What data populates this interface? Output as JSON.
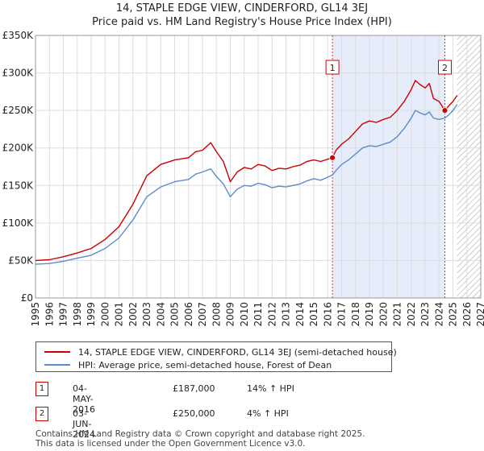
{
  "chart_data": {
    "type": "line",
    "title": "14, STAPLE EDGE VIEW, CINDERFORD, GL14 3EJ",
    "subtitle": "Price paid vs. HM Land Registry's House Price Index (HPI)",
    "xlabel": "",
    "ylabel": "",
    "xlim": [
      1995,
      2027
    ],
    "ylim": [
      0,
      350000
    ],
    "x_ticks": [
      "1995",
      "1996",
      "1997",
      "1998",
      "1999",
      "2000",
      "2001",
      "2002",
      "2003",
      "2004",
      "2005",
      "2006",
      "2007",
      "2008",
      "2009",
      "2010",
      "2011",
      "2012",
      "2013",
      "2014",
      "2015",
      "2016",
      "2017",
      "2018",
      "2019",
      "2020",
      "2021",
      "2022",
      "2023",
      "2024",
      "2025",
      "2026",
      "2027"
    ],
    "y_ticks": [
      {
        "value": 0,
        "label": "£0"
      },
      {
        "value": 50000,
        "label": "£50K"
      },
      {
        "value": 100000,
        "label": "£100K"
      },
      {
        "value": 150000,
        "label": "£150K"
      },
      {
        "value": 200000,
        "label": "£200K"
      },
      {
        "value": 250000,
        "label": "£250K"
      },
      {
        "value": 300000,
        "label": "£300K"
      },
      {
        "value": 350000,
        "label": "£350K"
      }
    ],
    "grid": true,
    "shaded_range": [
      2016.34,
      2024.42
    ],
    "future_hatch_from": 2025.3,
    "series": [
      {
        "name": "14, STAPLE EDGE VIEW, CINDERFORD, GL14 3EJ (semi-detached house)",
        "color": "#cc0000",
        "x": [
          1995,
          1996,
          1997,
          1998,
          1999,
          2000,
          2001,
          2002,
          2003,
          2004,
          2005,
          2006,
          2006.5,
          2007,
          2007.6,
          2008,
          2008.5,
          2009,
          2009.5,
          2010,
          2010.5,
          2011,
          2011.5,
          2012,
          2012.5,
          2013,
          2013.5,
          2014,
          2014.5,
          2015,
          2015.5,
          2016,
          2016.34,
          2016.6,
          2017,
          2017.5,
          2018,
          2018.5,
          2019,
          2019.5,
          2020,
          2020.5,
          2021,
          2021.5,
          2022,
          2022.3,
          2022.6,
          2023,
          2023.3,
          2023.6,
          2024,
          2024.42,
          2024.7,
          2025,
          2025.3
        ],
        "y": [
          50000,
          51000,
          55000,
          60000,
          66000,
          78000,
          95000,
          125000,
          163000,
          178000,
          184000,
          187000,
          195000,
          197000,
          207000,
          195000,
          182000,
          155000,
          168000,
          174000,
          172000,
          178000,
          176000,
          170000,
          173000,
          172000,
          175000,
          177000,
          182000,
          184000,
          182000,
          185000,
          187000,
          197000,
          205000,
          212000,
          222000,
          232000,
          236000,
          234000,
          238000,
          241000,
          250000,
          262000,
          278000,
          290000,
          285000,
          280000,
          286000,
          266000,
          262000,
          250000,
          256000,
          262000,
          270000
        ]
      },
      {
        "name": "HPI: Average price, semi-detached house, Forest of Dean",
        "color": "#5b8cc8",
        "x": [
          1995,
          1996,
          1997,
          1998,
          1999,
          2000,
          2001,
          2002,
          2003,
          2004,
          2005,
          2006,
          2006.5,
          2007,
          2007.6,
          2008,
          2008.5,
          2009,
          2009.5,
          2010,
          2010.5,
          2011,
          2011.5,
          2012,
          2012.5,
          2013,
          2013.5,
          2014,
          2014.5,
          2015,
          2015.5,
          2016,
          2016.34,
          2016.6,
          2017,
          2017.5,
          2018,
          2018.5,
          2019,
          2019.5,
          2020,
          2020.5,
          2021,
          2021.5,
          2022,
          2022.3,
          2022.6,
          2023,
          2023.3,
          2023.6,
          2024,
          2024.42,
          2024.7,
          2025,
          2025.3
        ],
        "y": [
          45000,
          46000,
          49000,
          53000,
          57000,
          66000,
          80000,
          104000,
          135000,
          148000,
          155000,
          158000,
          165000,
          168000,
          172000,
          162000,
          152000,
          135000,
          145000,
          150000,
          149000,
          153000,
          151000,
          147000,
          149000,
          148000,
          150000,
          152000,
          156000,
          159000,
          157000,
          161000,
          164000,
          170000,
          178000,
          184000,
          192000,
          200000,
          203000,
          202000,
          205000,
          208000,
          215000,
          226000,
          240000,
          250000,
          247000,
          244000,
          248000,
          240000,
          238000,
          240000,
          244000,
          250000,
          258000
        ]
      }
    ],
    "markers": [
      {
        "label": "1",
        "x": 2016.34,
        "y": 187000
      },
      {
        "label": "2",
        "x": 2024.42,
        "y": 250000
      }
    ]
  },
  "legend": {
    "items": [
      {
        "label": "14, STAPLE EDGE VIEW, CINDERFORD, GL14 3EJ (semi-detached house)",
        "color": "#cc0000"
      },
      {
        "label": "HPI: Average price, semi-detached house, Forest of Dean",
        "color": "#5b8cc8"
      }
    ]
  },
  "transactions": [
    {
      "num": "1",
      "date": "04-MAY-2016",
      "price": "£187,000",
      "hpi": "14% ↑ HPI"
    },
    {
      "num": "2",
      "date": "03-JUN-2024",
      "price": "£250,000",
      "hpi": "4% ↑ HPI"
    }
  ],
  "footer": {
    "line1": "Contains HM Land Registry data © Crown copyright and database right 2025.",
    "line2": "This data is licensed under the Open Government Licence v3.0."
  }
}
